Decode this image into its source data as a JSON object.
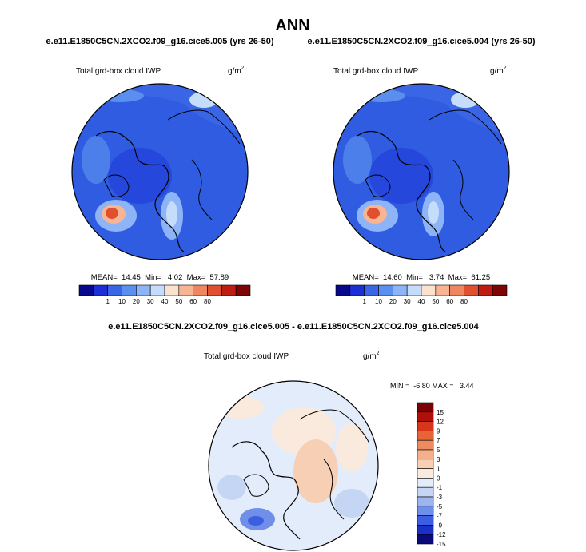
{
  "title": "ANN",
  "colors": {
    "abs_scale": [
      "#08088a",
      "#1c2fd6",
      "#3a66e6",
      "#5a8ff0",
      "#8db4f7",
      "#c6dcfb",
      "#fbe2cf",
      "#f7b594",
      "#f08660",
      "#e0502e",
      "#bf1d12",
      "#7e0505"
    ],
    "diff_scale": [
      "#0a0a7a",
      "#1b2fc9",
      "#3c5ee2",
      "#6f8fe9",
      "#9db5ef",
      "#c5d6f5",
      "#e3ecfa",
      "#faeadd",
      "#f6cfb4",
      "#f3b08a",
      "#ef8b60",
      "#e86438",
      "#d8361a",
      "#b01007",
      "#7a0202"
    ],
    "coast": "#000000",
    "ocean_hi": "#dfe8fb"
  },
  "chart_data": [
    {
      "type": "heatmap",
      "projection": "polar-stereographic",
      "case_title": "e.e11.E1850C5CN.2XCO2.f09_g16.cice5.005 (yrs 26-50)",
      "variable": "Total grd-box cloud IWP",
      "units_base": "g/m",
      "units_exp": "2",
      "stats_text": "MEAN=  14.45  Min=   4.02  Max=  57.89",
      "mean": 14.45,
      "min": 4.02,
      "max": 57.89,
      "colorbar_levels": [
        "1",
        "10",
        "20",
        "30",
        "40",
        "50",
        "60",
        "80"
      ]
    },
    {
      "type": "heatmap",
      "projection": "polar-stereographic",
      "case_title": "e.e11.E1850C5CN.2XCO2.f09_g16.cice5.004 (yrs 26-50)",
      "variable": "Total grd-box cloud IWP",
      "units_base": "g/m",
      "units_exp": "2",
      "stats_text": "MEAN=  14.60  Min=   3.74  Max=  61.25",
      "mean": 14.6,
      "min": 3.74,
      "max": 61.25,
      "colorbar_levels": [
        "1",
        "10",
        "20",
        "30",
        "40",
        "50",
        "60",
        "80"
      ]
    },
    {
      "type": "heatmap",
      "projection": "polar-stereographic",
      "case_title": "e.e11.E1850C5CN.2XCO2.f09_g16.cice5.005 - e.e11.E1850C5CN.2XCO2.f09_g16.cice5.004",
      "variable": "Total grd-box cloud IWP",
      "units_base": "g/m",
      "units_exp": "2",
      "stats_text": "MIN =  -6.80 MAX =   3.44",
      "min": -6.8,
      "max": 3.44,
      "colorbar_levels": [
        "15",
        "12",
        "9",
        "7",
        "5",
        "3",
        "1",
        "0",
        "-1",
        "-3",
        "-5",
        "-7",
        "-9",
        "-12",
        "-15"
      ]
    }
  ]
}
